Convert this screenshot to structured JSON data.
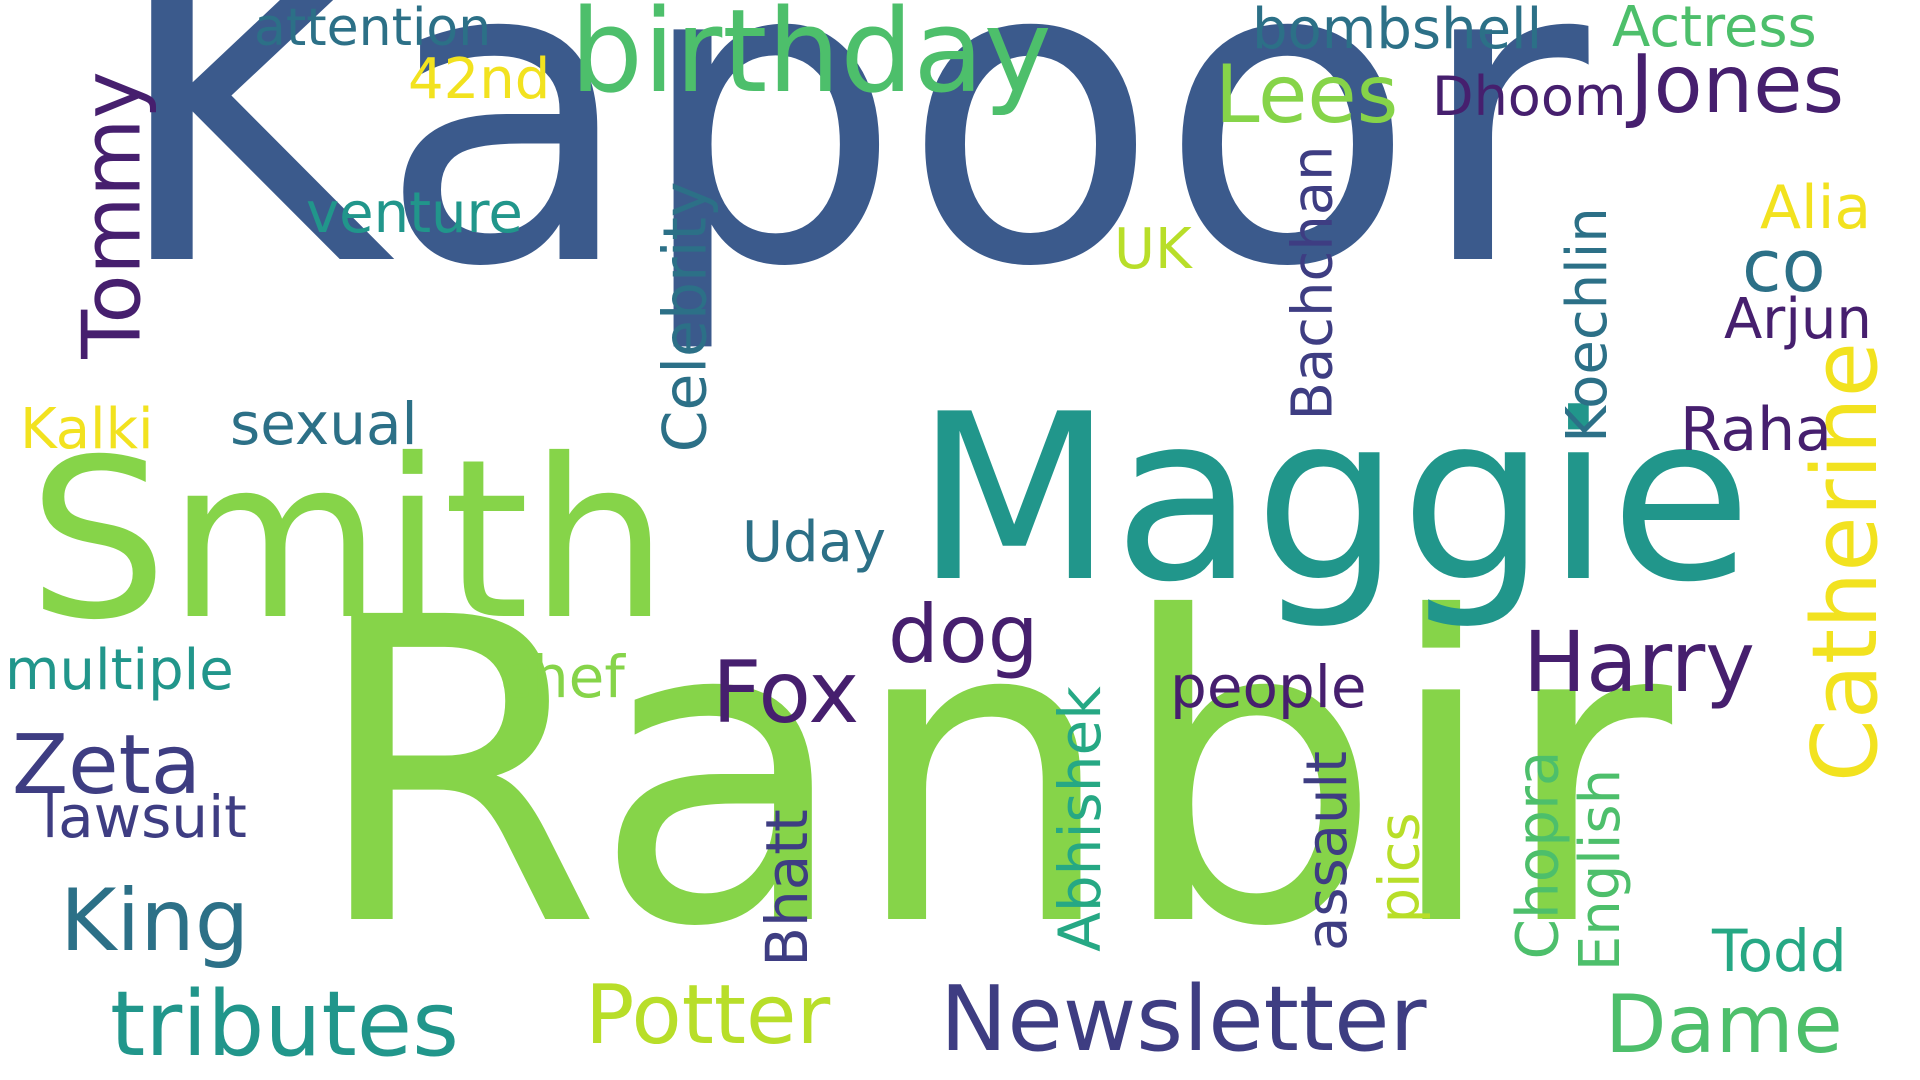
{
  "words": {
    "kapoor": "Kapoor",
    "ranbir": "Ranbir",
    "maggie": "Maggie",
    "smith": "Smith",
    "birthday": "birthday",
    "newsletter": "Newsletter",
    "tributes": "tributes",
    "potter": "Potter",
    "harry": "Harry",
    "jones": "Jones",
    "catherine": "Catherine",
    "dame": "Dame",
    "zeta": "Zeta",
    "king": "King",
    "fox": "Fox",
    "dog": "dog",
    "tommy": "Tommy",
    "lees": "Lees",
    "bombshell": "bombshell",
    "actress": "Actress",
    "attention": "attention",
    "nd42": "42nd",
    "venture": "venture",
    "uk": "UK",
    "celebrity": "Celebrity",
    "bachchan": "Bachchan",
    "koechlin": "Koechlin",
    "dhoom": "Dhoom",
    "co": "co",
    "alia": "Alia",
    "arjun": "Arjun",
    "raha": "Raha",
    "kalki": "Kalki",
    "sexual": "sexual",
    "uday": "Uday",
    "multiple": "multiple",
    "chef": "chef",
    "lawsuit": "lawsuit",
    "people": "people",
    "abhishek": "Abhishek",
    "assault": "assault",
    "pics": "pics",
    "bhatt": "Bhatt",
    "chopra": "Chopra",
    "english": "English",
    "todd": "Todd"
  },
  "colors": {
    "dark_blue": "#3b5a8c",
    "green": "#86d449",
    "teal": "#21968b",
    "mid_green": "#4dbf6b",
    "purple": "#461f6e",
    "indigo": "#3e3d82",
    "yellow": "#f2e21f",
    "lime": "#b8de29",
    "blue_teal": "#2c7087",
    "teal_green": "#26a884"
  }
}
